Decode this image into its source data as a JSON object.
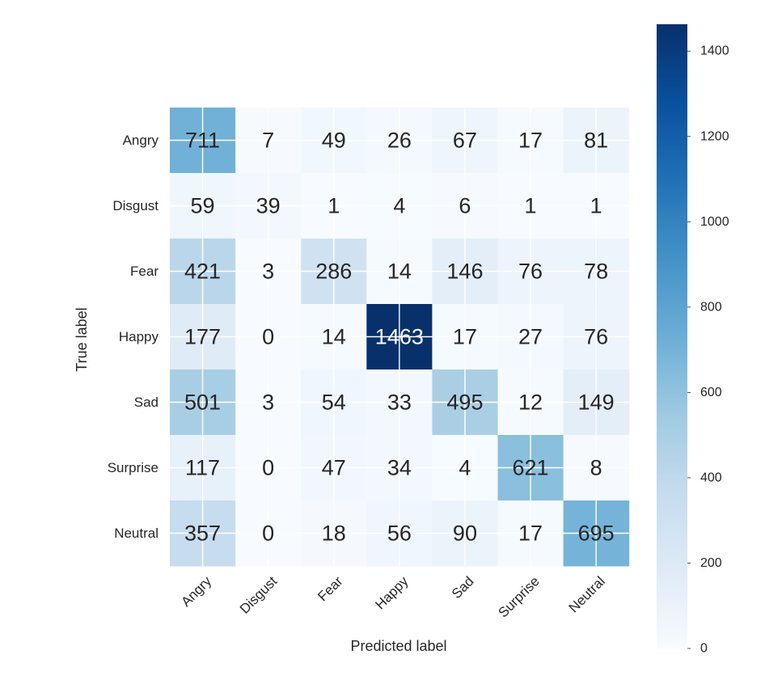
{
  "chart_data": {
    "type": "heatmap",
    "title": "",
    "xlabel": "Predicted label",
    "ylabel": "True label",
    "categories": [
      "Angry",
      "Disgust",
      "Fear",
      "Happy",
      "Sad",
      "Surprise",
      "Neutral"
    ],
    "matrix": [
      [
        711,
        7,
        49,
        26,
        67,
        17,
        81
      ],
      [
        59,
        39,
        1,
        4,
        6,
        1,
        1
      ],
      [
        421,
        3,
        286,
        14,
        146,
        76,
        78
      ],
      [
        177,
        0,
        14,
        1463,
        17,
        27,
        76
      ],
      [
        501,
        3,
        54,
        33,
        495,
        12,
        149
      ],
      [
        117,
        0,
        47,
        34,
        4,
        621,
        8
      ],
      [
        357,
        0,
        18,
        56,
        90,
        17,
        695
      ]
    ],
    "colormap": "Blues",
    "colorbar": {
      "range": [
        0,
        1463
      ],
      "ticks": [
        0,
        200,
        400,
        600,
        800,
        1000,
        1200,
        1400
      ]
    },
    "grid": true
  },
  "colors": {
    "low": "#f7fbff",
    "high": "#08306b",
    "grid": "#ffffff",
    "text_dark": "#262626",
    "text_light": "#ffffff"
  }
}
